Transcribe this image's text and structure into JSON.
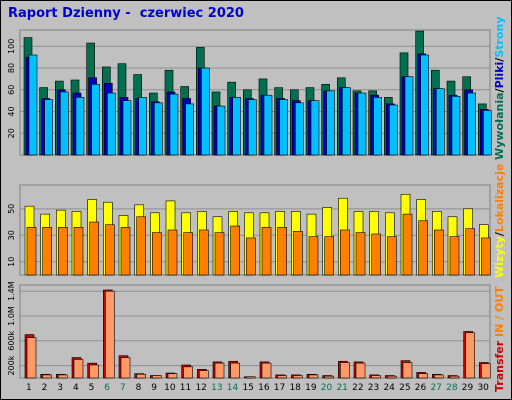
{
  "title": "Raport Dzienny -  czerwiec 2020",
  "colors": {
    "background": "#c0c0c0",
    "title": "#0000cc",
    "visits": "#007050",
    "pages": "#0000c0",
    "files": "#00c0ff",
    "sites": "#ffff00",
    "kbytes": "#ff8000",
    "transfer": "#cc0000",
    "transfer_light": "#ff9966",
    "weekend_day": "#007050"
  },
  "side_labels": {
    "top": [
      {
        "text": "Wywołania",
        "color": "#007050"
      },
      {
        "text": "/",
        "color": "#000000"
      },
      {
        "text": "Pliki",
        "color": "#0000c0"
      },
      {
        "text": "/",
        "color": "#000000"
      },
      {
        "text": "Strony",
        "color": "#00c0ff"
      }
    ],
    "middle": [
      {
        "text": "Wizyty",
        "color": "#ffff00"
      },
      {
        "text": "/",
        "color": "#000000"
      },
      {
        "text": "Lokalizacje",
        "color": "#ff8000"
      }
    ],
    "bottom": [
      {
        "text": "Transfer",
        "color": "#cc0000"
      },
      {
        "text": "  IN / OUT",
        "color": "#ff8000"
      }
    ]
  },
  "chart_data": [
    {
      "type": "bar",
      "name": "hits-files-pages",
      "categories": [
        "1",
        "2",
        "3",
        "4",
        "5",
        "6",
        "7",
        "8",
        "9",
        "10",
        "11",
        "12",
        "13",
        "14",
        "15",
        "16",
        "17",
        "18",
        "19",
        "20",
        "21",
        "22",
        "23",
        "24",
        "25",
        "26",
        "27",
        "28",
        "29",
        "30"
      ],
      "yticks": [
        20,
        40,
        60,
        80,
        100
      ],
      "ylim": [
        0,
        115
      ],
      "series": [
        {
          "name": "Wywołania",
          "values": [
            108,
            62,
            68,
            69,
            103,
            81,
            84,
            74,
            57,
            78,
            63,
            99,
            58,
            67,
            60,
            70,
            62,
            60,
            62,
            65,
            71,
            59,
            59,
            53,
            94,
            114,
            78,
            68,
            72,
            47
          ]
        },
        {
          "name": "Pliki",
          "values": [
            90,
            52,
            60,
            57,
            71,
            66,
            53,
            52,
            49,
            58,
            52,
            80,
            45,
            53,
            52,
            55,
            52,
            50,
            50,
            59,
            62,
            57,
            55,
            47,
            72,
            93,
            61,
            55,
            60,
            42
          ]
        },
        {
          "name": "Strony",
          "values": [
            92,
            51,
            58,
            53,
            65,
            57,
            50,
            53,
            48,
            56,
            47,
            80,
            45,
            53,
            51,
            55,
            51,
            48,
            50,
            59,
            62,
            57,
            53,
            46,
            72,
            92,
            61,
            54,
            57,
            41
          ]
        }
      ]
    },
    {
      "type": "bar",
      "name": "visits-sites",
      "categories": [
        "1",
        "2",
        "3",
        "4",
        "5",
        "6",
        "7",
        "8",
        "9",
        "10",
        "11",
        "12",
        "13",
        "14",
        "15",
        "16",
        "17",
        "18",
        "19",
        "20",
        "21",
        "22",
        "23",
        "24",
        "25",
        "26",
        "27",
        "28",
        "29",
        "30"
      ],
      "yticks": [
        10,
        30,
        50
      ],
      "ylim": [
        0,
        68
      ],
      "series": [
        {
          "name": "Wizyty",
          "values": [
            52,
            46,
            49,
            48,
            57,
            55,
            45,
            53,
            47,
            56,
            47,
            48,
            44,
            48,
            47,
            47,
            48,
            48,
            46,
            51,
            58,
            48,
            48,
            47,
            61,
            57,
            48,
            44,
            50,
            38
          ]
        },
        {
          "name": "Lokalizacje",
          "values": [
            36,
            36,
            36,
            36,
            40,
            38,
            36,
            44,
            32,
            34,
            32,
            34,
            32,
            37,
            28,
            36,
            36,
            33,
            29,
            29,
            34,
            32,
            31,
            29,
            46,
            41,
            34,
            29,
            35,
            28
          ]
        }
      ]
    },
    {
      "type": "bar",
      "name": "transfer",
      "categories": [
        "1",
        "2",
        "3",
        "4",
        "5",
        "6",
        "7",
        "8",
        "9",
        "10",
        "11",
        "12",
        "13",
        "14",
        "15",
        "16",
        "17",
        "18",
        "19",
        "20",
        "21",
        "22",
        "23",
        "24",
        "25",
        "26",
        "27",
        "28",
        "29",
        "30"
      ],
      "yticks": [
        200,
        600,
        1000,
        1400
      ],
      "ytick_labels": [
        "200k",
        "600k",
        "1.0M",
        "1.4M"
      ],
      "ylim": [
        0,
        1500
      ],
      "series": [
        {
          "name": "Transfer",
          "values": [
            700,
            60,
            60,
            330,
            240,
            1420,
            360,
            70,
            40,
            80,
            210,
            140,
            260,
            270,
            20,
            260,
            50,
            50,
            60,
            40,
            270,
            260,
            50,
            40,
            280,
            90,
            60,
            40,
            750,
            250
          ]
        },
        {
          "name": "IN / OUT",
          "values": [
            650,
            50,
            50,
            300,
            210,
            1400,
            330,
            60,
            40,
            70,
            180,
            120,
            240,
            240,
            20,
            240,
            40,
            40,
            50,
            30,
            250,
            240,
            40,
            30,
            250,
            70,
            50,
            30,
            730,
            230
          ]
        }
      ]
    }
  ],
  "weekend_days": [
    "6",
    "7",
    "13",
    "14",
    "20",
    "21",
    "27",
    "28"
  ]
}
